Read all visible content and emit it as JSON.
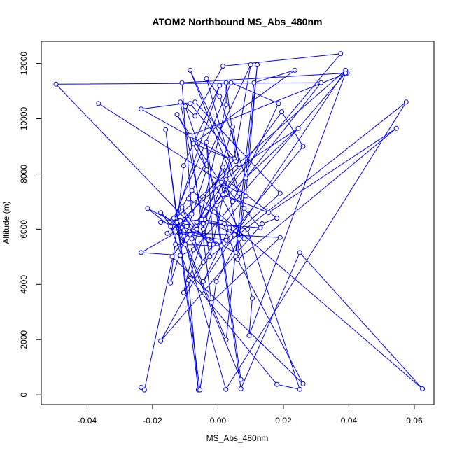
{
  "chart_data": {
    "type": "line",
    "title": "ATOM2 Northbound MS_Abs_480nm",
    "xlabel": "MS_Abs_480nm",
    "ylabel": "Altitude (m)",
    "xlim": [
      -0.054,
      0.066
    ],
    "ylim": [
      -350,
      12800
    ],
    "xticks": [
      -0.04,
      -0.02,
      0.0,
      0.02,
      0.04,
      0.06
    ],
    "xtick_labels": [
      "-0.04",
      "-0.02",
      "0.00",
      "0.02",
      "0.04",
      "0.06"
    ],
    "yticks": [
      0,
      2000,
      4000,
      6000,
      8000,
      10000,
      12000
    ],
    "ytick_labels": [
      "0",
      "2000",
      "4000",
      "6000",
      "8000",
      "10000",
      "12000"
    ],
    "grid": false,
    "series_color": "#0000ff",
    "series": [
      {
        "x": [
          -0.0235,
          -0.0225,
          -0.013,
          0.001,
          -0.0215,
          -0.0145,
          -0.0085,
          0.018,
          0.025,
          0.009,
          -0.004,
          0.005,
          0.019,
          -0.007,
          -0.0235,
          0.0037,
          -0.009,
          -0.006,
          -0.016,
          -0.0055,
          -0.0005,
          0.0065,
          0.002,
          0.0085,
          0.012,
          0.006,
          -0.012,
          0.0024,
          0.0575,
          -0.004,
          -0.0175,
          0.0135,
          0.018,
          0.0025,
          -0.014,
          0.026,
          0.0055,
          0.001,
          -0.009,
          0.01,
          0.005,
          -0.013,
          0.019,
          -0.002,
          -0.0085,
          0.0395,
          -0.011,
          -0.008,
          -0.0155,
          0.0065,
          0.0245,
          -0.0005,
          0.007,
          -0.0135,
          0.004,
          0.0185,
          0.0045,
          -0.0125,
          0.008,
          0.0035,
          -0.0045,
          0.039,
          -0.013,
          -0.008,
          0.0625,
          0.025,
          0.007,
          -0.0035,
          -0.0015,
          -0.0105,
          0.0025,
          0.0025,
          0.0055,
          -0.0075,
          0.0235,
          0.011,
          0.0025,
          -0.0125,
          -0.005,
          0.0375,
          0.0015,
          -0.007,
          -0.0115,
          -0.0025,
          0.004,
          -0.0085,
          0.008,
          0.0055,
          0.006,
          0.0545,
          0.0155,
          0.0015,
          0.001,
          0.013,
          -0.0065,
          -0.0045,
          -0.0045,
          0.0045,
          0.0065,
          -0.0085,
          -0.01,
          -0.0035,
          -0.0145,
          -0.0105,
          0.0005,
          -0.0145,
          0.0025,
          0.026,
          0.0195,
          -0.01,
          -0.0175,
          -0.008,
          0.0015,
          0.0105,
          0.0095,
          0.039,
          -0.0075,
          -0.0115,
          -0.0235,
          -0.0095,
          -0.0175,
          -0.0135,
          -0.0115,
          -0.0045,
          -0.011,
          -0.0065,
          -0.0025,
          -0.0495,
          0.0315,
          0.0085,
          0.0005,
          -0.0035,
          0.0065,
          -0.0365
        ],
        "y": [
          270,
          180,
          5450,
          5400,
          6750,
          6100,
          4200,
          380,
          200,
          6000,
          6350,
          5800,
          7300,
          10600,
          10350,
          8550,
          4150,
          180,
          9600,
          180,
          4100,
          5650,
          6200,
          7200,
          11950,
          5100,
          6300,
          200,
          10600,
          4850,
          1950,
          6200,
          6400,
          7800,
          5000,
          400,
          5000,
          6400,
          7100,
          11950,
          8550,
          5900,
          5700,
          3350,
          9400,
          11650,
          11300,
          6550,
          5850,
          8250,
          9650,
          6850,
          560,
          6400,
          11300,
          10550,
          7000,
          10150,
          5650,
          6050,
          4100,
          11750,
          6400,
          7400,
          220,
          5150,
          220,
          9150,
          5450,
          3700,
          10500,
          11300,
          8450,
          9100,
          11750,
          11300,
          2000,
          6250,
          6350,
          12350,
          11900,
          10100,
          10600,
          5000,
          8500,
          11750,
          6750,
          5150,
          4900,
          9650,
          6600,
          7250,
          7700,
          6050,
          6250,
          6200,
          6000,
          9700,
          8350,
          10550,
          10450,
          8150,
          4050,
          8300,
          11200,
          5900,
          5600,
          9000,
          10250,
          5450,
          6600,
          5650,
          8250,
          3500,
          2150,
          11650,
          5250,
          5050,
          5150,
          6100,
          6250,
          6400,
          6300,
          4800,
          6800,
          6000,
          5450,
          11250,
          11300,
          7850,
          10800,
          11450,
          7300,
          10550
        ]
      }
    ]
  }
}
